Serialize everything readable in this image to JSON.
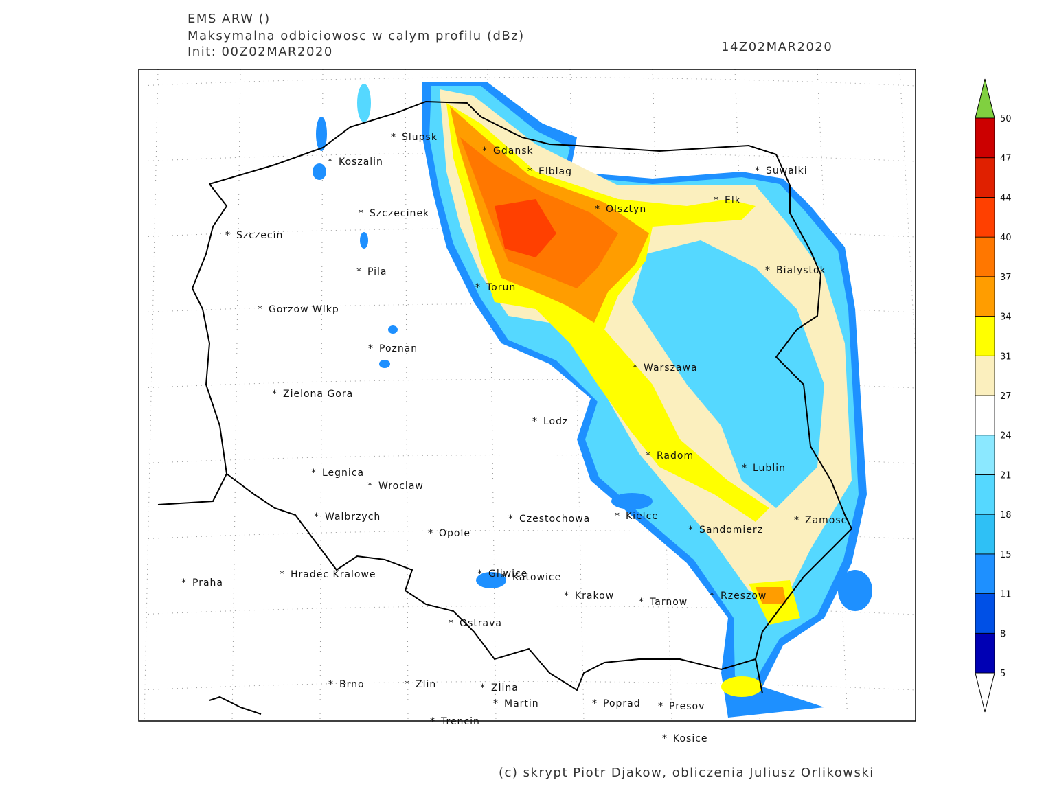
{
  "header": {
    "model": "EMS ARW ()",
    "field": "Maksymalna odbiciowosc w calym profilu (dBz)",
    "init": "Init: 00Z02MAR2020",
    "valid": "14Z02MAR2020"
  },
  "cities": [
    "Slupsk",
    "Koszalin",
    "Gdansk",
    "Elblag",
    "Suwalki",
    "Olsztyn",
    "Elk",
    "Szczecinek",
    "Szczecin",
    "Pila",
    "Bialystok",
    "Torun",
    "Gorzow Wlkp",
    "Poznan",
    "Warszawa",
    "Zielona Gora",
    "Lodz",
    "Radom",
    "Lublin",
    "Legnica",
    "Wroclaw",
    "Walbrzych",
    "Czestochowa",
    "Kielce",
    "Zamosc",
    "Opole",
    "Sandomierz",
    "Gliwice",
    "Katowice",
    "Hradec Kralowe",
    "Praha",
    "Krakow",
    "Rzeszow",
    "Tarnow",
    "Ostrava",
    "Brno",
    "Zlin",
    "Zlina",
    "Martin",
    "Poprad",
    "Presov",
    "Trencin",
    "Kosice"
  ],
  "colorbar": {
    "ticks": [
      5,
      8,
      11,
      15,
      18,
      21,
      24,
      27,
      31,
      34,
      37,
      40,
      44,
      47,
      50
    ],
    "colors": [
      "#0000b4",
      "#0050e6",
      "#1e90ff",
      "#2fc0f5",
      "#55d8ff",
      "#8be8ff",
      "#ffffff",
      "#fbefbe",
      "#ffff00",
      "#ff9d00",
      "#ff7700",
      "#ff4000",
      "#e02000",
      "#cc0000"
    ],
    "over_color": "#80d040",
    "under_color": "#ffffff"
  },
  "footer": "(c) skrypt Piotr Djakow, obliczenia Juliusz Orlikowski"
}
